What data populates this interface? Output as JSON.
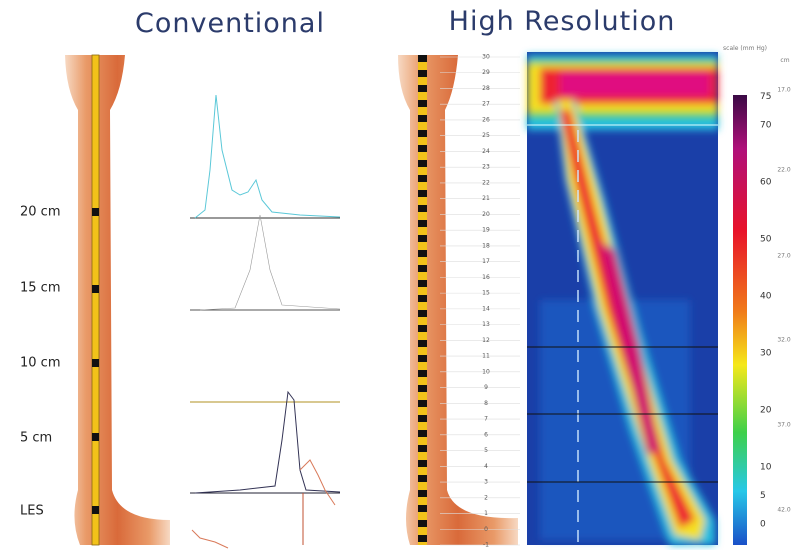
{
  "titles": {
    "conventional": "Conventional",
    "high_resolution": "High Resolution"
  },
  "position_labels": [
    "20 cm",
    "15 cm",
    "10 cm",
    "5 cm",
    "LES"
  ],
  "sensor_numbers": [
    "30",
    "29",
    "28",
    "27",
    "26",
    "25",
    "24",
    "23",
    "22",
    "21",
    "20",
    "19",
    "18",
    "17",
    "16",
    "15",
    "14",
    "13",
    "12",
    "11",
    "10",
    "9",
    "8",
    "7",
    "6",
    "5",
    "4",
    "3",
    "2",
    "1",
    "0",
    "-1"
  ],
  "scale_title": "scale (mm Hg)",
  "scale_ticks": [
    "75",
    "70",
    "60",
    "50",
    "40",
    "30",
    "20",
    "10",
    "5",
    "0"
  ],
  "right_header": "cm",
  "right_labels": [
    "17.0",
    "22.0",
    "27.0",
    "32.0",
    "37.0",
    "42.0"
  ]
}
